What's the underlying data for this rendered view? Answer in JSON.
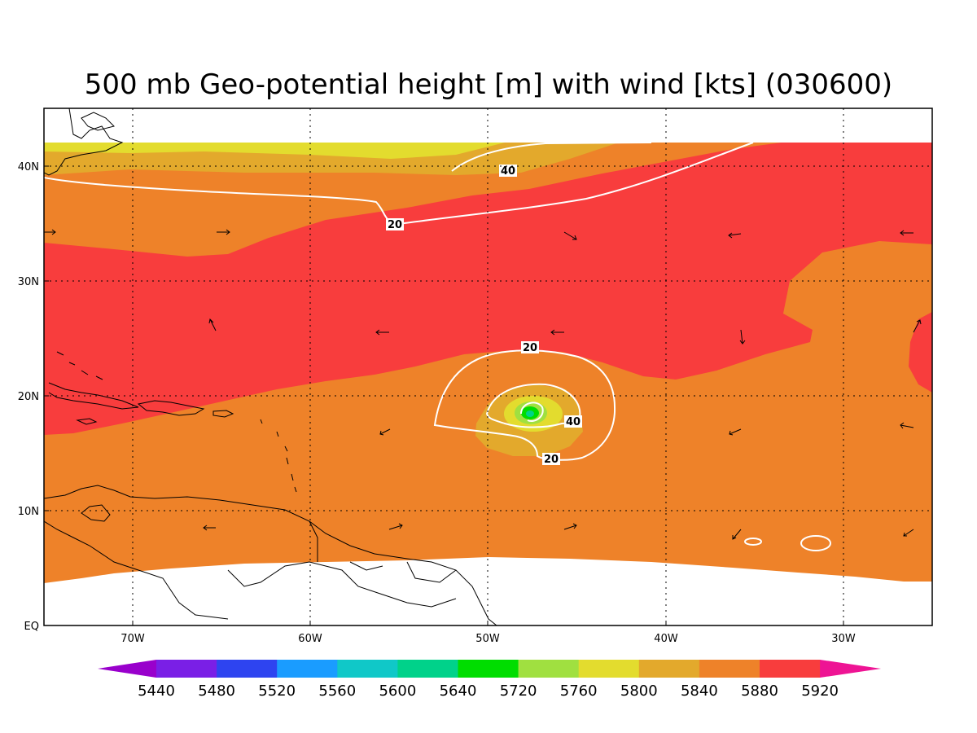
{
  "title": "500 mb Geo-potential height [m] with wind [kts] (030600)",
  "lon_ticks": [
    "70W",
    "60W",
    "50W",
    "40W",
    "30W"
  ],
  "lat_ticks": [
    "40N",
    "30N",
    "20N",
    "10N",
    "EQ"
  ],
  "colorbar": {
    "labels": [
      "5440",
      "5480",
      "5520",
      "5560",
      "5600",
      "5640",
      "5720",
      "5760",
      "5800",
      "5840",
      "5880",
      "5920"
    ],
    "colors": [
      "#9900cc",
      "#7a1fe6",
      "#2e44f0",
      "#1a9cff",
      "#10c8c8",
      "#00d28a",
      "#00dd00",
      "#a0e040",
      "#e3dc2e",
      "#e3a92c",
      "#ee8229",
      "#f83d3d",
      "#ee1494"
    ]
  },
  "contour_labels": [
    "40",
    "20",
    "20",
    "40",
    "20"
  ],
  "fill_colors": {
    "band_5800": "#e3dc2e",
    "band_5840": "#e3a92c",
    "band_5880": "#ee8229",
    "band_5920": "#f83d3d",
    "band_5760": "#a0e040",
    "band_5720": "#00dd00",
    "band_5640": "#00d28a"
  }
}
